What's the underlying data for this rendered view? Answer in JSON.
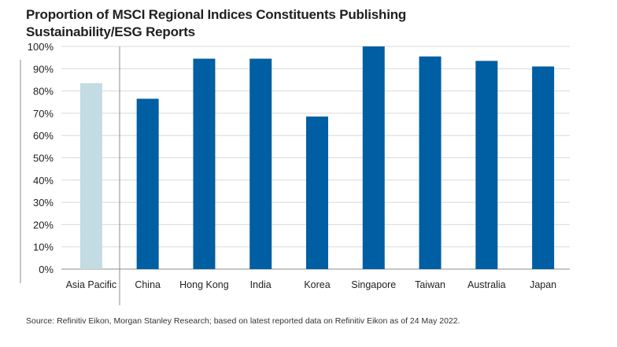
{
  "chart_data": {
    "type": "bar",
    "title_line1": "Proportion of MSCI Regional Indices Constituents Publishing",
    "title_line2": "Sustainability/ESG Reports",
    "categories": [
      "Asia Pacific",
      "China",
      "Hong Kong",
      "India",
      "Korea",
      "Singapore",
      "Taiwan",
      "Australia",
      "Japan"
    ],
    "values": [
      83.5,
      76.5,
      94.5,
      94.5,
      68.5,
      100,
      95.5,
      93.5,
      91
    ],
    "highlight_category": "Asia Pacific",
    "ylim": [
      0,
      100
    ],
    "yticks": [
      0,
      10,
      20,
      30,
      40,
      50,
      60,
      70,
      80,
      90,
      100
    ],
    "ytick_labels": [
      "0%",
      "10%",
      "20%",
      "30%",
      "40%",
      "50%",
      "60%",
      "70%",
      "80%",
      "90%",
      "100%"
    ],
    "xlabel": "",
    "ylabel": "",
    "grid": true,
    "legend": "none",
    "colors": {
      "bar": "#005ea2",
      "highlight_bar": "#c3dbe3",
      "grid": "#d9d9d9",
      "axis": "#8c8c8c",
      "text": "#1f1f1f"
    }
  },
  "footer": {
    "source": "Source: Refinitiv Eikon, Morgan Stanley Research; based on latest reported data on Refinitiv Eikon as of 24 May 2022."
  }
}
